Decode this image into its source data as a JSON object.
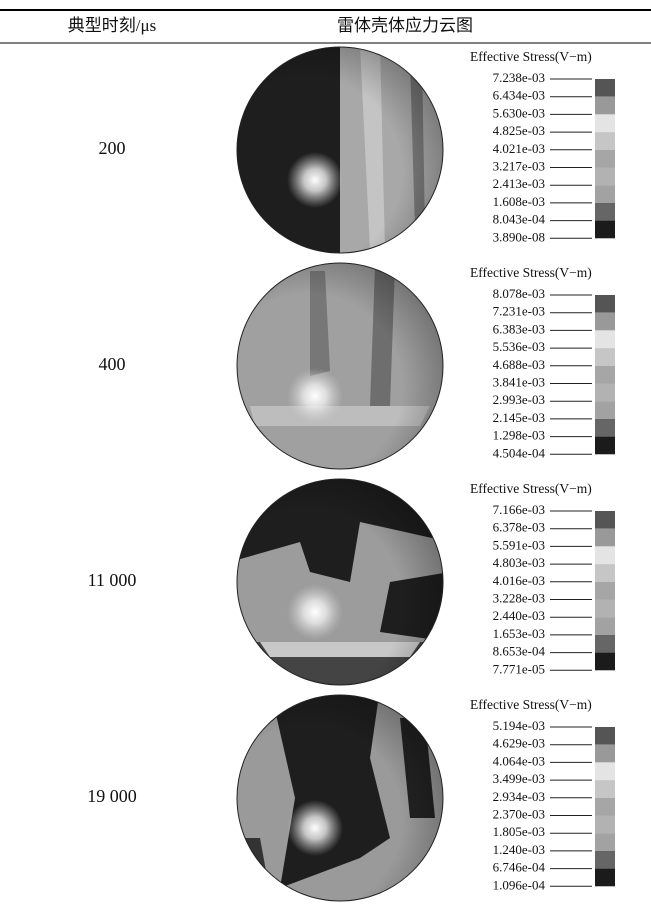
{
  "header": {
    "time": "典型时刻/μs",
    "contour": "雷体壳体应力云图"
  },
  "rows": [
    {
      "time": "200",
      "legend": {
        "title": "Effective Stress(V−m)",
        "labels": [
          "7.238e-03",
          "6.434e-03",
          "5.630e-03",
          "4.825e-03",
          "4.021e-03",
          "3.217e-03",
          "2.413e-03",
          "1.608e-03",
          "8.043e-04",
          "3.890e-08"
        ]
      }
    },
    {
      "time": "400",
      "legend": {
        "title": "Effective Stress(V−m)",
        "labels": [
          "8.078e-03",
          "7.231e-03",
          "6.383e-03",
          "5.536e-03",
          "4.688e-03",
          "3.841e-03",
          "2.993e-03",
          "2.145e-03",
          "1.298e-03",
          "4.504e-04"
        ]
      }
    },
    {
      "time": "11 000",
      "legend": {
        "title": "Effective Stress(V−m)",
        "labels": [
          "7.166e-03",
          "6.378e-03",
          "5.591e-03",
          "4.803e-03",
          "4.016e-03",
          "3.228e-03",
          "2.440e-03",
          "1.653e-03",
          "8.653e-04",
          "7.771e-05"
        ]
      }
    },
    {
      "time": "19 000",
      "legend": {
        "title": "Effective Stress(V−m)",
        "labels": [
          "5.194e-03",
          "4.629e-03",
          "4.064e-03",
          "3.499e-03",
          "2.934e-03",
          "2.370e-03",
          "1.805e-03",
          "1.240e-03",
          "6.746e-04",
          "1.096e-04"
        ]
      }
    }
  ]
}
